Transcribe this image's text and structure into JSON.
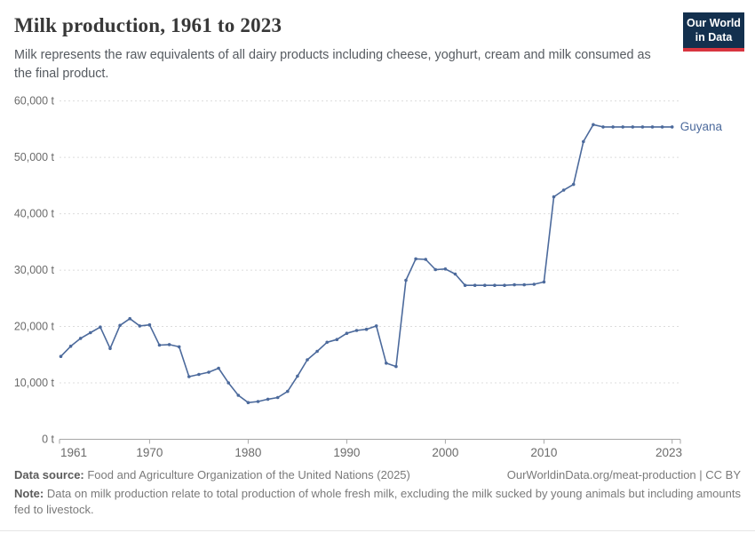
{
  "header": {
    "title": "Milk production, 1961 to 2023",
    "subtitle": "Milk represents the raw equivalents of all dairy products including cheese, yoghurt, cream and milk consumed as the final product.",
    "logo": {
      "line1": "Our World",
      "line2": "in Data",
      "bg_color": "#13304E",
      "accent_color": "#D8353F"
    }
  },
  "chart_data": {
    "type": "line",
    "title": "Milk production, 1961 to 2023",
    "xlabel": "",
    "ylabel": "",
    "unit": "t",
    "grid": "dashed-horizontal",
    "legend_position": "end-of-line-label",
    "xlim": [
      1961,
      2023
    ],
    "ylim": [
      0,
      60000
    ],
    "x_ticks": [
      1961,
      1970,
      1980,
      1990,
      2000,
      2010,
      2023
    ],
    "y_ticks": [
      0,
      10000,
      20000,
      30000,
      40000,
      50000,
      60000
    ],
    "y_tick_suffix": " t",
    "colors": {
      "line": "#4C6A9C",
      "grid": "#DCDCDC",
      "axis": "#A6A6A6",
      "tick_text": "#6B6B6B"
    },
    "series": [
      {
        "name": "Guyana",
        "color": "#4C6A9C",
        "x": [
          1961,
          1962,
          1963,
          1964,
          1965,
          1966,
          1967,
          1968,
          1969,
          1970,
          1971,
          1972,
          1973,
          1974,
          1975,
          1976,
          1977,
          1978,
          1979,
          1980,
          1981,
          1982,
          1983,
          1984,
          1985,
          1986,
          1987,
          1988,
          1989,
          1990,
          1991,
          1992,
          1993,
          1994,
          1995,
          1996,
          1997,
          1998,
          1999,
          2000,
          2001,
          2002,
          2003,
          2004,
          2005,
          2006,
          2007,
          2008,
          2009,
          2010,
          2011,
          2012,
          2013,
          2014,
          2015,
          2016,
          2017,
          2018,
          2019,
          2020,
          2021,
          2022,
          2023
        ],
        "values": [
          14700,
          16500,
          17900,
          18900,
          19900,
          16100,
          20200,
          21400,
          20100,
          20300,
          16700,
          16800,
          16400,
          11100,
          11500,
          11900,
          12600,
          10000,
          7800,
          6500,
          6700,
          7100,
          7400,
          8500,
          11200,
          14100,
          15600,
          17200,
          17700,
          18800,
          19300,
          19500,
          20100,
          13500,
          12900,
          28200,
          32000,
          31900,
          30100,
          30200,
          29300,
          27300,
          27300,
          27300,
          27300,
          27300,
          27400,
          27400,
          27500,
          27900,
          43000,
          44200,
          45200,
          52800,
          55800,
          55400,
          55400,
          55400,
          55400,
          55400,
          55400,
          55400,
          55400
        ]
      }
    ]
  },
  "footer": {
    "source_label": "Data source:",
    "source_text": " Food and Agriculture Organization of the United Nations (2025)",
    "link_text": "OurWorldinData.org/meat-production | CC BY",
    "note_label": "Note:",
    "note_text": " Data on milk production relate to total production of whole fresh milk, excluding the milk sucked by young animals but including amounts fed to livestock."
  }
}
